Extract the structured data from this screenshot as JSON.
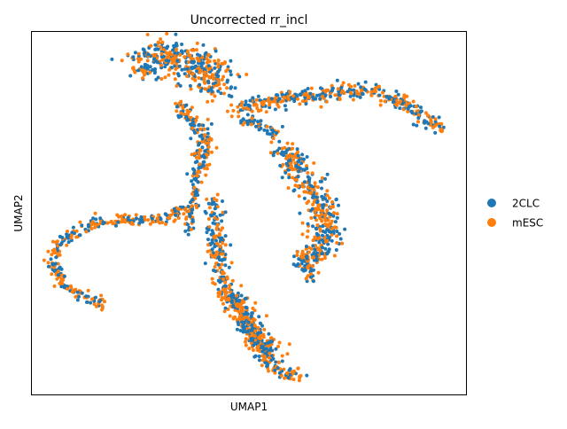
{
  "chart_data": {
    "type": "scatter",
    "title": "Uncorrected rr_incl",
    "xlabel": "UMAP1",
    "ylabel": "UMAP2",
    "xlim": [
      0,
      100
    ],
    "ylim": [
      0,
      100
    ],
    "grid": false,
    "ticks": false,
    "legend_position": "right",
    "series": [
      {
        "name": "2CLC",
        "color": "#1f77b4"
      },
      {
        "name": "mESC",
        "color": "#ff7f0e"
      }
    ],
    "point_count_estimate": 2400,
    "clusters": [
      {
        "label": "top-left lobe",
        "path": [
          [
            25,
            90
          ],
          [
            30,
            93
          ],
          [
            35,
            92
          ],
          [
            40,
            90
          ],
          [
            44,
            85
          ]
        ],
        "spread": 4.5,
        "n": 420
      },
      {
        "label": "upper neck",
        "path": [
          [
            34,
            80
          ],
          [
            37,
            75
          ],
          [
            40,
            70
          ],
          [
            39,
            65
          ],
          [
            38,
            58
          ]
        ],
        "spread": 1.8,
        "n": 160
      },
      {
        "label": "center stem",
        "path": [
          [
            38,
            58
          ],
          [
            37,
            52
          ],
          [
            36,
            45
          ]
        ],
        "spread": 1.2,
        "n": 60
      },
      {
        "label": "left arm",
        "path": [
          [
            36,
            52
          ],
          [
            30,
            48
          ],
          [
            20,
            48
          ],
          [
            14,
            47
          ],
          [
            10,
            45
          ],
          [
            6,
            41
          ],
          [
            5,
            36
          ],
          [
            7,
            31
          ],
          [
            12,
            27
          ],
          [
            17,
            25
          ]
        ],
        "spread": 1.4,
        "n": 300
      },
      {
        "label": "bottom branch",
        "path": [
          [
            42,
            54
          ],
          [
            42,
            47
          ],
          [
            43,
            38
          ],
          [
            44,
            30
          ],
          [
            47,
            25
          ],
          [
            50,
            18
          ],
          [
            53,
            12
          ],
          [
            56,
            7
          ],
          [
            62,
            5
          ]
        ],
        "spread": 2.0,
        "n": 380
      },
      {
        "label": "bottom branch bulge",
        "path": [
          [
            45,
            28
          ],
          [
            48,
            24
          ],
          [
            51,
            18
          ],
          [
            55,
            12
          ]
        ],
        "spread": 2.8,
        "n": 220
      },
      {
        "label": "right arm",
        "path": [
          [
            46,
            78
          ],
          [
            55,
            81
          ],
          [
            65,
            82
          ],
          [
            73,
            84
          ],
          [
            80,
            83
          ],
          [
            87,
            79
          ],
          [
            94,
            73
          ]
        ],
        "spread": 1.8,
        "n": 380
      },
      {
        "label": "right arm connector",
        "path": [
          [
            47,
            76
          ],
          [
            53,
            74
          ],
          [
            57,
            72
          ]
        ],
        "spread": 1.2,
        "n": 50
      },
      {
        "label": "right blob",
        "path": [
          [
            57,
            68
          ],
          [
            62,
            61
          ],
          [
            66,
            54
          ],
          [
            68,
            47
          ],
          [
            66,
            40
          ],
          [
            63,
            36
          ]
        ],
        "spread": 3.3,
        "n": 420
      },
      {
        "label": "right blob tail",
        "path": [
          [
            62,
            40
          ],
          [
            63,
            35
          ],
          [
            64,
            31
          ]
        ],
        "spread": 1.5,
        "n": 40
      }
    ]
  }
}
